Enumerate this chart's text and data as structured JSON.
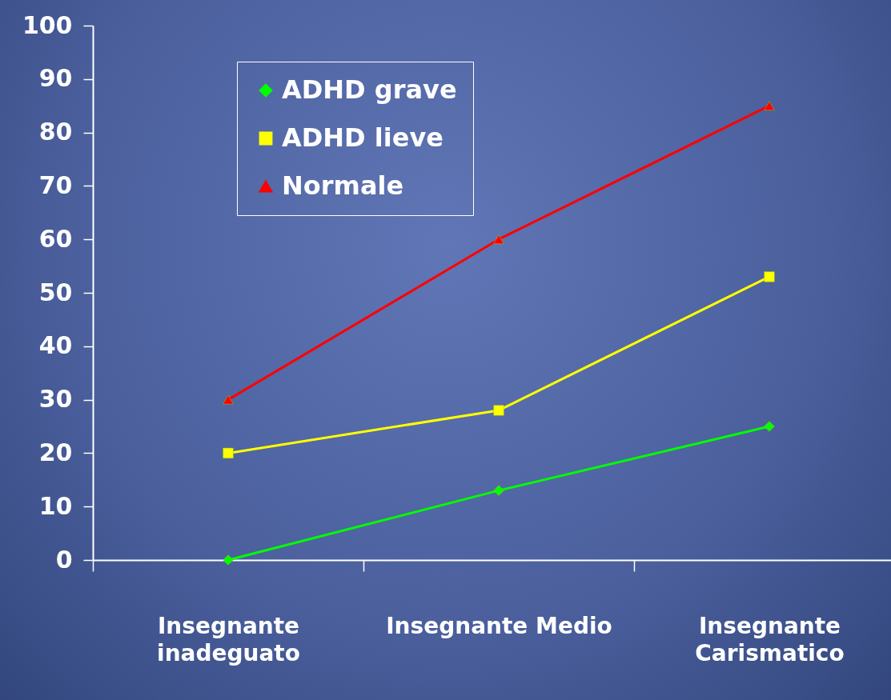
{
  "chart_data": {
    "type": "line",
    "categories": [
      "Insegnante inadeguato",
      "Insegnante Medio",
      "Insegnante Carismatico"
    ],
    "series": [
      {
        "name": "ADHD grave",
        "color": "#00ff00",
        "marker": "diamond",
        "values": [
          0,
          13,
          25
        ]
      },
      {
        "name": "ADHD lieve",
        "color": "#ffff00",
        "marker": "square",
        "values": [
          20,
          28,
          53
        ]
      },
      {
        "name": "Normale",
        "color": "#ff0000",
        "marker": "triangle",
        "values": [
          30,
          60,
          85
        ]
      }
    ],
    "ylim": [
      0,
      100
    ],
    "yticks": [
      0,
      10,
      20,
      30,
      40,
      50,
      60,
      70,
      80,
      90,
      100
    ],
    "grid": false,
    "legend": "top left"
  }
}
